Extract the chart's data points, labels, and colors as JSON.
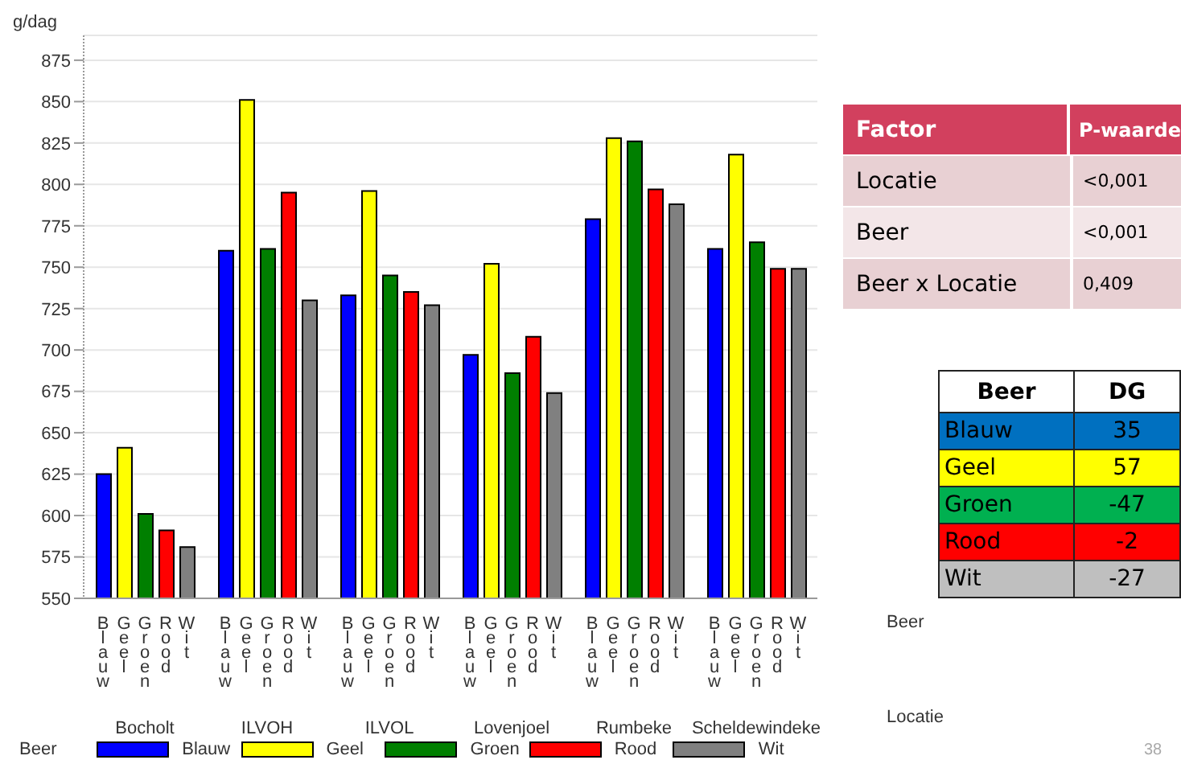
{
  "chart_data": [
    {
      "type": "bar",
      "categories": [
        "Bocholt",
        "ILVOH",
        "ILVOL",
        "Lovenjoel",
        "Rumbeke",
        "Scheldewindeke"
      ],
      "series": [
        {
          "name": "Blauw",
          "color": "#0000ff",
          "values": [
            625,
            760,
            733,
            697,
            779,
            761
          ]
        },
        {
          "name": "Geel",
          "color": "#ffff00",
          "values": [
            641,
            851,
            796,
            752,
            828,
            818
          ]
        },
        {
          "name": "Groen",
          "color": "#007f00",
          "values": [
            601,
            761,
            745,
            686,
            826,
            765
          ]
        },
        {
          "name": "Rood",
          "color": "#ff0000",
          "values": [
            591,
            795,
            735,
            708,
            797,
            749
          ]
        },
        {
          "name": "Wit",
          "color": "#808080",
          "values": [
            581,
            730,
            727,
            674,
            788,
            749
          ]
        }
      ],
      "ylabel": "g/dag",
      "xlabel": "Locatie",
      "legend_title": "Beer",
      "legend": "bottom",
      "grid": "y",
      "ylim": [
        550,
        890
      ],
      "yticks": [
        550,
        575,
        600,
        625,
        650,
        675,
        700,
        725,
        750,
        775,
        800,
        825,
        850,
        875
      ],
      "annotations": [
        "Beer",
        "38"
      ]
    },
    {
      "type": "other",
      "annotations": [
        "Factor",
        "P-waarde",
        "Locatie",
        "<0,001",
        "Beer",
        "<0,001",
        "Beer x Locatie",
        "0,409"
      ]
    },
    {
      "type": "other",
      "annotations": [
        "Beer",
        "DG"
      ],
      "categories": [
        "Blauw",
        "Geel",
        "Groen",
        "Rood",
        "Wit"
      ],
      "values": [
        35,
        57,
        -47,
        -2,
        -27
      ],
      "data_labels": true,
      "colors": [
        "#0070c0",
        "#ffff00",
        "#00b050",
        "#ff0000",
        "#bfbfbf"
      ]
    }
  ]
}
